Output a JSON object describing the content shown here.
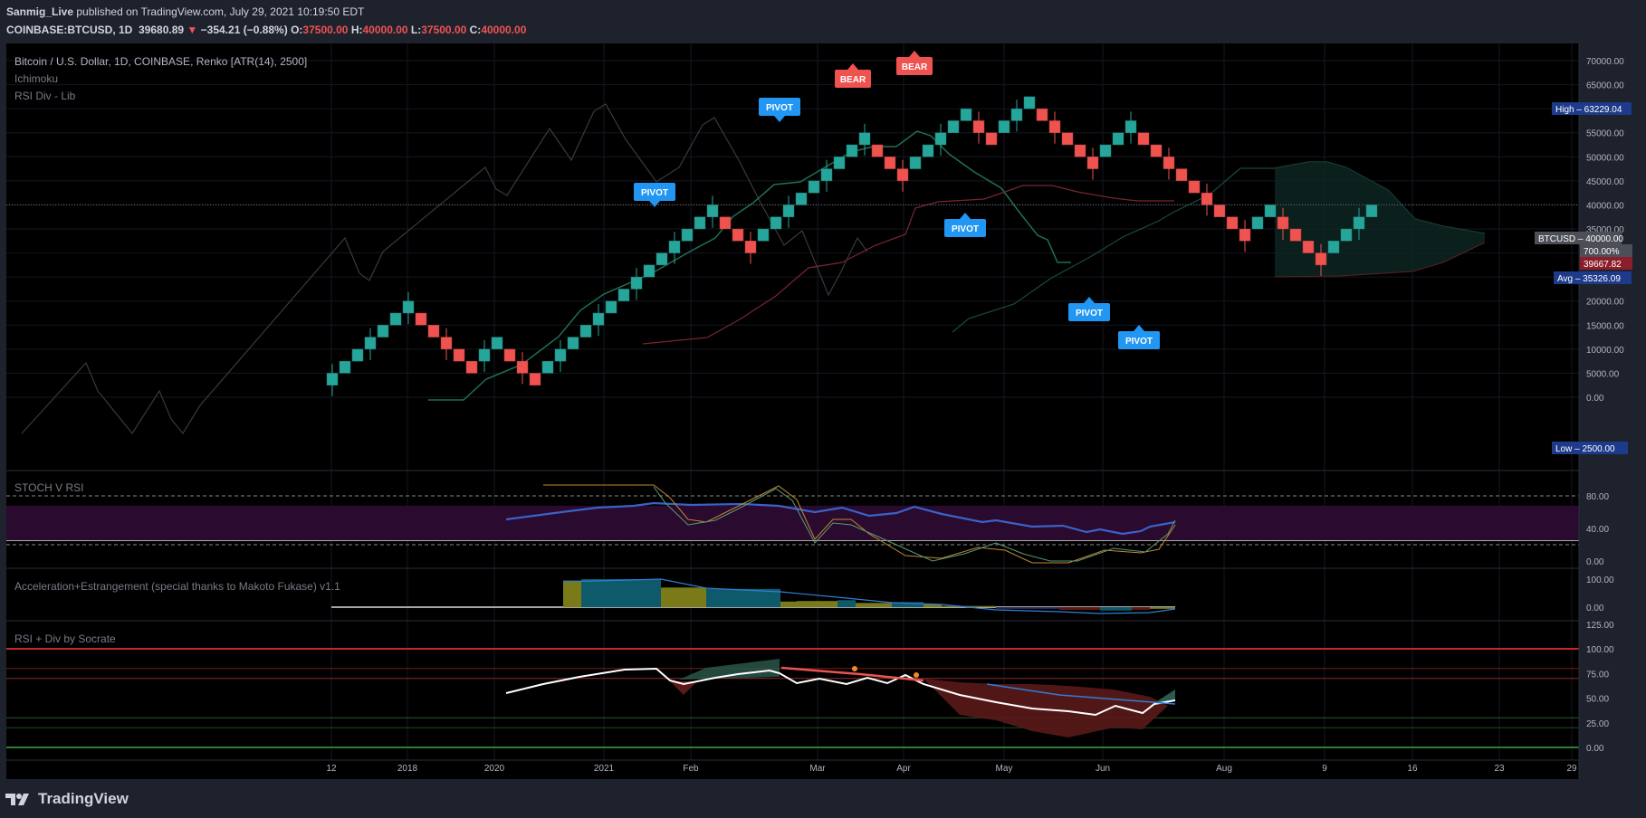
{
  "header": {
    "author": "Sanmig_Live",
    "published_text": "published on TradingView.com, July 29, 2021 10:19:50 EDT",
    "symbol": "COINBASE:BTCUSD, 1D",
    "last": "39680.89",
    "change_arrow": "▼",
    "change": "−354.21 (−0.88%)",
    "o_label": "O:",
    "o_value": "37500.00",
    "h_label": "H:",
    "h_value": "40000.00",
    "l_label": "L:",
    "l_value": "37500.00",
    "c_label": "C:",
    "c_value": "40000.00"
  },
  "legend": {
    "title": "Bitcoin / U.S. Dollar, 1D, COINBASE, Renko [ATR(14), 2500]",
    "ichimoku": "Ichimoku",
    "rsi_div_lib": "RSI Div - Lib"
  },
  "panes": {
    "stoch": "STOCH V RSI",
    "accel": "Acceleration+Estrangement (special thanks to Makoto Fukase) v1.1",
    "rsi": "RSI + Div by Socrate"
  },
  "price_axis": {
    "labels": [
      "70000.00",
      "65000.00",
      "60000.00",
      "55000.00",
      "50000.00",
      "45000.00",
      "40000.00",
      "35000.00",
      "30000.00",
      "25000.00",
      "20000.00",
      "15000.00",
      "10000.00",
      "5000.00",
      "0.00"
    ]
  },
  "price_tags": {
    "high_label": "High",
    "high_value": "63229.04",
    "symbol_tag": "BTCUSD",
    "symbol_value": "40000.00",
    "pct": "700.00%",
    "red_value": "39667.82",
    "avg_label": "Avg",
    "avg_value": "35326.09",
    "low_label": "Low",
    "low_value": "2500.00"
  },
  "stoch_axis": [
    "80.00",
    "40.00",
    "0.00"
  ],
  "accel_axis": [
    "100.00",
    "0.00"
  ],
  "rsi_axis": [
    "125.00",
    "100.00",
    "75.00",
    "50.00",
    "25.00",
    "0.00"
  ],
  "time_axis": [
    "12",
    "2018",
    "2020",
    "2021",
    "Feb",
    "Mar",
    "Apr",
    "May",
    "Jun",
    "Aug",
    "9",
    "16",
    "23",
    "29"
  ],
  "markers": [
    {
      "text": "PIVOT",
      "kind": "pivot"
    },
    {
      "text": "PIVOT",
      "kind": "pivot"
    },
    {
      "text": "BEAR",
      "kind": "bear"
    },
    {
      "text": "BEAR",
      "kind": "bear"
    },
    {
      "text": "PIVOT",
      "kind": "pivot"
    },
    {
      "text": "PIVOT",
      "kind": "pivot"
    },
    {
      "text": "PIVOT",
      "kind": "pivot"
    }
  ],
  "brand": "TradingView",
  "colors": {
    "up": "#26a69a",
    "down": "#ef5350",
    "bg": "#000000",
    "pivot": "#2196f3",
    "bear": "#ef5350"
  },
  "chart_data": {
    "type": "renko",
    "title": "Bitcoin / U.S. Dollar, 1D, COINBASE, Renko [ATR(14), 2500]",
    "box_size": 2500,
    "ylim": [
      0,
      72500
    ],
    "bricks": [
      [
        "u",
        5000
      ],
      [
        "u",
        7500
      ],
      [
        "u",
        10000
      ],
      [
        "u",
        12500
      ],
      [
        "u",
        15000
      ],
      [
        "u",
        17500
      ],
      [
        "u",
        20000
      ],
      [
        "d",
        17500
      ],
      [
        "d",
        15000
      ],
      [
        "d",
        12500
      ],
      [
        "d",
        10000
      ],
      [
        "d",
        7500
      ],
      [
        "u",
        10000
      ],
      [
        "u",
        12500
      ],
      [
        "d",
        10000
      ],
      [
        "d",
        7500
      ],
      [
        "d",
        5000
      ],
      [
        "u",
        7500
      ],
      [
        "u",
        10000
      ],
      [
        "u",
        12500
      ],
      [
        "u",
        15000
      ],
      [
        "u",
        17500
      ],
      [
        "u",
        20000
      ],
      [
        "u",
        22500
      ],
      [
        "u",
        25000
      ],
      [
        "u",
        27500
      ],
      [
        "u",
        30000
      ],
      [
        "u",
        32500
      ],
      [
        "u",
        35000
      ],
      [
        "u",
        37500
      ],
      [
        "u",
        40000
      ],
      [
        "d",
        37500
      ],
      [
        "d",
        35000
      ],
      [
        "d",
        32500
      ],
      [
        "u",
        35000
      ],
      [
        "u",
        37500
      ],
      [
        "u",
        40000
      ],
      [
        "u",
        42500
      ],
      [
        "u",
        45000
      ],
      [
        "u",
        47500
      ],
      [
        "u",
        50000
      ],
      [
        "u",
        52500
      ],
      [
        "u",
        55000
      ],
      [
        "d",
        52500
      ],
      [
        "d",
        50000
      ],
      [
        "d",
        47500
      ],
      [
        "u",
        50000
      ],
      [
        "u",
        52500
      ],
      [
        "u",
        55000
      ],
      [
        "u",
        57500
      ],
      [
        "u",
        60000
      ],
      [
        "d",
        57500
      ],
      [
        "d",
        55000
      ],
      [
        "u",
        57500
      ],
      [
        "u",
        60000
      ],
      [
        "u",
        62500
      ],
      [
        "d",
        60000
      ],
      [
        "d",
        57500
      ],
      [
        "d",
        55000
      ],
      [
        "d",
        52500
      ],
      [
        "d",
        50000
      ],
      [
        "u",
        52500
      ],
      [
        "u",
        55000
      ],
      [
        "u",
        57500
      ],
      [
        "d",
        55000
      ],
      [
        "d",
        52500
      ],
      [
        "d",
        50000
      ],
      [
        "d",
        47500
      ],
      [
        "d",
        45000
      ],
      [
        "d",
        42500
      ],
      [
        "d",
        40000
      ],
      [
        "d",
        37500
      ],
      [
        "d",
        35000
      ],
      [
        "u",
        37500
      ],
      [
        "u",
        40000
      ],
      [
        "d",
        37500
      ],
      [
        "d",
        35000
      ],
      [
        "d",
        32500
      ],
      [
        "d",
        30000
      ],
      [
        "u",
        32500
      ],
      [
        "u",
        35000
      ],
      [
        "u",
        37500
      ],
      [
        "u",
        40000
      ]
    ],
    "high": 63229.04,
    "low": 2500.0,
    "avg": 35326.09,
    "last": 40000.0,
    "stoch_ylim": [
      0,
      100
    ],
    "rsi_ylim": [
      0,
      125
    ],
    "accel_ylim": [
      -10,
      110
    ]
  }
}
